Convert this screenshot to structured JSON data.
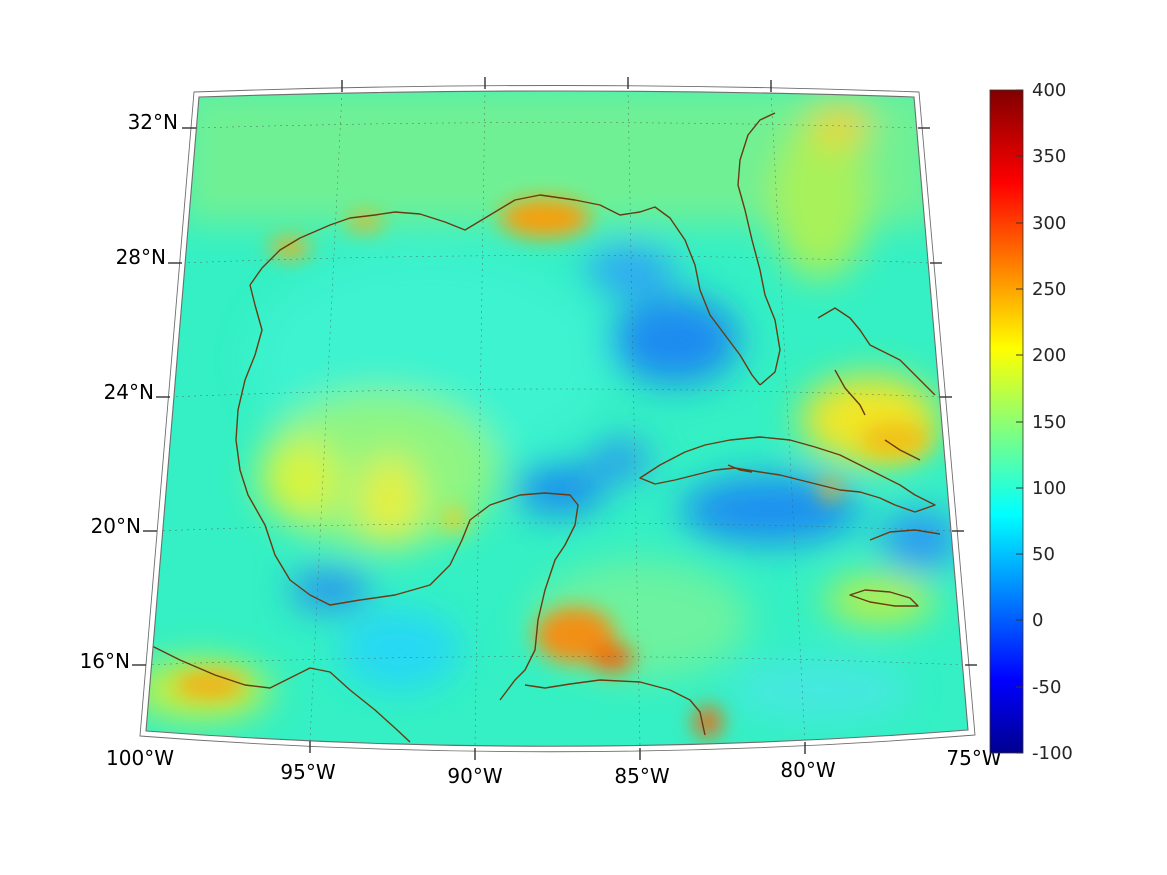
{
  "map": {
    "region": "Gulf of Mexico and Caribbean",
    "lat_labels": [
      "32°N",
      "28°N",
      "24°N",
      "20°N",
      "16°N"
    ],
    "lon_labels": [
      "100°W",
      "95°W",
      "90°W",
      "85°W",
      "80°W",
      "75°W"
    ],
    "land_outline_color": "#6B3A10",
    "grid_line_color": "#555555"
  },
  "colorbar": {
    "ticks": [
      "400",
      "350",
      "300",
      "250",
      "200",
      "150",
      "100",
      "50",
      "0",
      "-50",
      "-100"
    ],
    "range": [
      -100,
      400
    ],
    "colormap": "jet",
    "stops": [
      "#00008F",
      "#0000FF",
      "#00FFFF",
      "#FFFF00",
      "#FF0000",
      "#800000"
    ]
  }
}
